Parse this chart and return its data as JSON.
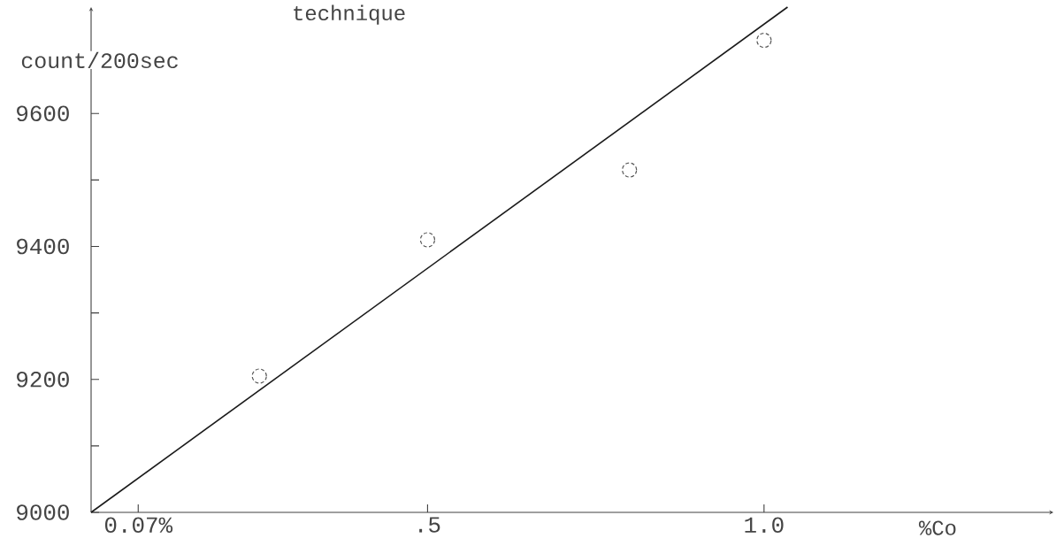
{
  "chart_data": {
    "type": "scatter",
    "title": "technique",
    "xlabel": "%Co",
    "ylabel": "count/200sec",
    "series": [
      {
        "color": "#555555",
        "marker": "circle",
        "x": [
          0.25,
          0.5,
          0.8,
          1.0
        ],
        "values": [
          9205,
          9410,
          9515,
          9710
        ]
      },
      {
        "type": "line",
        "color": "#1a1a1a",
        "marker": "none",
        "x": [
          0,
          1.035
        ],
        "values": [
          9000,
          9760
        ]
      }
    ],
    "xlim": [
      0,
      1.43
    ],
    "ylim": [
      9000,
      9760
    ],
    "xticks": [
      {
        "value": 0.07,
        "label": "0.07%"
      },
      {
        "value": 0.5,
        "label": ".5"
      },
      {
        "value": 1,
        "label": "1.0"
      }
    ],
    "yticks": [
      9000,
      {
        "value": 9100,
        "label": null
      },
      9200,
      {
        "value": 9300,
        "label": null
      },
      9400,
      {
        "value": 9500,
        "label": null
      },
      9600
    ]
  }
}
